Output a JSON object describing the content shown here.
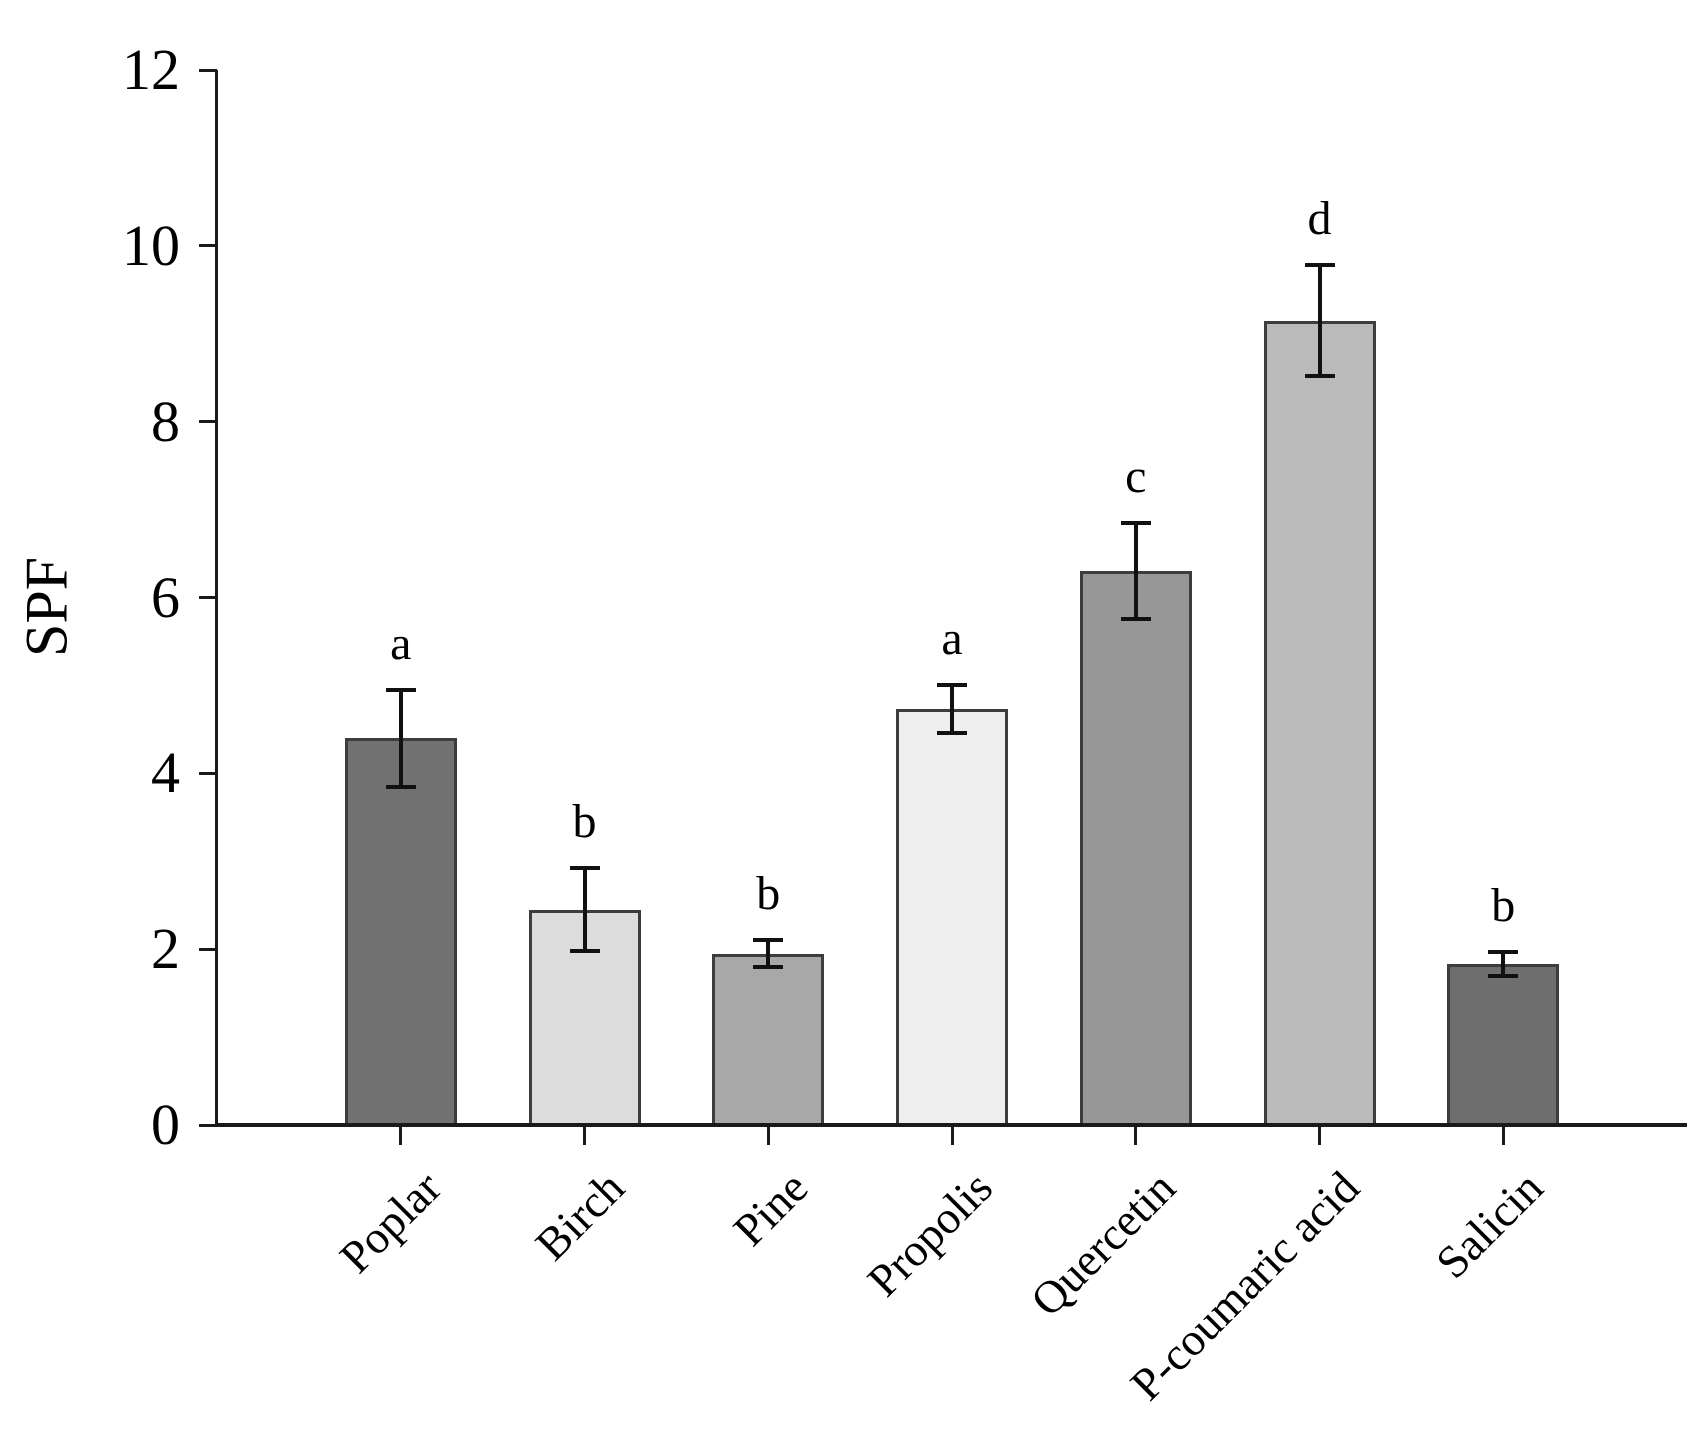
{
  "figure": {
    "background": "#ffffff",
    "text_color": "#000000"
  },
  "chart_data": {
    "type": "bar",
    "title": "",
    "xlabel": "",
    "ylabel": "SPF",
    "ylim": [
      0,
      12
    ],
    "yticks": [
      0,
      2,
      4,
      6,
      8,
      10,
      12
    ],
    "grid": false,
    "legend": "none",
    "categories": [
      "Poplar",
      "Birch",
      "Pine",
      "Propolis",
      "Quercetin",
      "P-coumaric acid",
      "Salicin"
    ],
    "values": [
      4.4,
      2.45,
      1.95,
      4.73,
      6.3,
      9.15,
      1.83
    ],
    "errors": [
      0.55,
      0.47,
      0.15,
      0.27,
      0.55,
      0.63,
      0.14
    ],
    "sig_letters": [
      "a",
      "b",
      "b",
      "a",
      "c",
      "d",
      "b"
    ],
    "bar_colors": [
      "#717171",
      "#dcdcdc",
      "#a8a8a8",
      "#eeeeee",
      "#979797",
      "#bababa",
      "#6e6e6e"
    ],
    "bar_border_color": "#3d3d3d",
    "error_bar_color": "#111111",
    "axis_color": "#1a1a1a"
  }
}
